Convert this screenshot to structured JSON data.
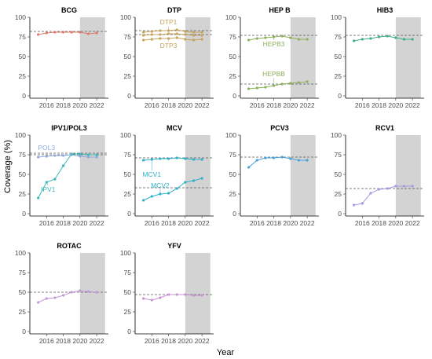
{
  "chart_data": {
    "type": "line",
    "xlabel": "Year",
    "ylabel": "Coverage (%)",
    "xlim": [
      2014,
      2023.4
    ],
    "ylim": [
      -3,
      100
    ],
    "x_ticks": [
      2016,
      2018,
      2020,
      2022
    ],
    "x_tick_labels": [
      "2016",
      "2018",
      "2020",
      "2022"
    ],
    "y_ticks": [
      0,
      25,
      50,
      75,
      100
    ],
    "y_tick_labels": [
      "0",
      "25",
      "50",
      "75",
      "100"
    ],
    "shaded_period": [
      2020,
      2023
    ],
    "shade_color": "#d3d3d3",
    "panels": [
      {
        "title": "BCG",
        "color": "#e07b6a",
        "targets": [
          82
        ],
        "series": [
          {
            "name": "",
            "x": [
              2015,
              2016,
              2017,
              2018,
              2019,
              2020,
              2021,
              2022
            ],
            "values": [
              78,
              80,
              81,
              81,
              81,
              81,
              79,
              80
            ]
          }
        ]
      },
      {
        "title": "DTP",
        "color": "#c4a35a",
        "targets": [
          83,
          78
        ],
        "series": [
          {
            "name": "DTP1",
            "x": [
              2015,
              2016,
              2017,
              2018,
              2019,
              2020,
              2021,
              2022
            ],
            "values": [
              81,
              82,
              83,
              83,
              84,
              82,
              81,
              81
            ]
          },
          {
            "name": "",
            "x": [
              2015,
              2016,
              2017,
              2018,
              2019,
              2020,
              2021,
              2022
            ],
            "values": [
              77,
              78,
              78,
              79,
              79,
              78,
              77,
              77
            ]
          },
          {
            "name": "DTP3",
            "x": [
              2015,
              2016,
              2017,
              2018,
              2019,
              2020,
              2021,
              2022
            ],
            "values": [
              71,
              72,
              73,
              73,
              74,
              72,
              71,
              72
            ]
          }
        ]
      },
      {
        "title": "HEP B",
        "color": "#8db05a",
        "targets": [
          77,
          15
        ],
        "series": [
          {
            "name": "HEPB3",
            "x": [
              2015,
              2016,
              2017,
              2018,
              2019,
              2020,
              2021,
              2022
            ],
            "values": [
              71,
              73,
              74,
              75,
              76,
              74,
              72,
              72
            ]
          },
          {
            "name": "HEPBB",
            "x": [
              2015,
              2016,
              2017,
              2018,
              2019,
              2020,
              2021,
              2022
            ],
            "values": [
              9,
              10,
              11,
              13,
              15,
              16,
              17,
              18
            ]
          }
        ]
      },
      {
        "title": "HIB3",
        "color": "#3fae8c",
        "targets": [
          77
        ],
        "series": [
          {
            "name": "",
            "x": [
              2015,
              2016,
              2017,
              2018,
              2019,
              2020,
              2021,
              2022
            ],
            "values": [
              70,
              72,
              73,
              75,
              76,
              74,
              72,
              72
            ]
          }
        ]
      },
      {
        "title": "IPV1/POL3",
        "color": "#3bb8b8",
        "color2": "#8ea9e0",
        "targets": [
          77,
          75
        ],
        "series": [
          {
            "name": "POL3",
            "x": [
              2015,
              2016,
              2017,
              2018,
              2019,
              2020,
              2021,
              2022
            ],
            "values": [
              72,
              73,
              74,
              74,
              75,
              73,
              72,
              72
            ]
          },
          {
            "name": "IPV1",
            "x": [
              2015,
              2016,
              2017,
              2018,
              2019,
              2020,
              2021,
              2022
            ],
            "values": [
              20,
              40,
              44,
              61,
              76,
              76,
              75,
              75
            ]
          }
        ]
      },
      {
        "title": "MCV",
        "color": "#2eb2c9",
        "targets": [
          71,
          33
        ],
        "series": [
          {
            "name": "MCV1",
            "x": [
              2015,
              2016,
              2017,
              2018,
              2019,
              2020,
              2021,
              2022
            ],
            "values": [
              68,
              69,
              70,
              70,
              71,
              70,
              69,
              69
            ]
          },
          {
            "name": "MCV2",
            "x": [
              2015,
              2016,
              2017,
              2018,
              2019,
              2020,
              2021,
              2022
            ],
            "values": [
              17,
              22,
              25,
              26,
              32,
              40,
              42,
              45
            ]
          }
        ]
      },
      {
        "title": "PCV3",
        "color": "#4aa3d8",
        "targets": [
          72
        ],
        "series": [
          {
            "name": "",
            "x": [
              2015,
              2016,
              2017,
              2018,
              2019,
              2020,
              2021,
              2022
            ],
            "values": [
              59,
              68,
              71,
              71,
              72,
              70,
              68,
              68
            ]
          }
        ]
      },
      {
        "title": "RCV1",
        "color": "#a59be0",
        "targets": [
          32
        ],
        "series": [
          {
            "name": "",
            "x": [
              2015,
              2016,
              2017,
              2018,
              2019,
              2020,
              2021,
              2022
            ],
            "values": [
              11,
              13,
              26,
              31,
              32,
              35,
              35,
              35
            ]
          }
        ]
      },
      {
        "title": "ROTAC",
        "color": "#c39ad8",
        "targets": [
          50
        ],
        "series": [
          {
            "name": "",
            "x": [
              2015,
              2016,
              2017,
              2018,
              2019,
              2020,
              2021,
              2022
            ],
            "values": [
              37,
              42,
              43,
              46,
              50,
              52,
              51,
              50
            ]
          }
        ]
      },
      {
        "title": "YFV",
        "color": "#c793d3",
        "targets": [
          47
        ],
        "series": [
          {
            "name": "",
            "x": [
              2015,
              2016,
              2017,
              2018,
              2019,
              2020,
              2021,
              2022
            ],
            "values": [
              42,
              40,
              43,
              47,
              47,
              47,
              46,
              46
            ]
          }
        ]
      }
    ]
  }
}
